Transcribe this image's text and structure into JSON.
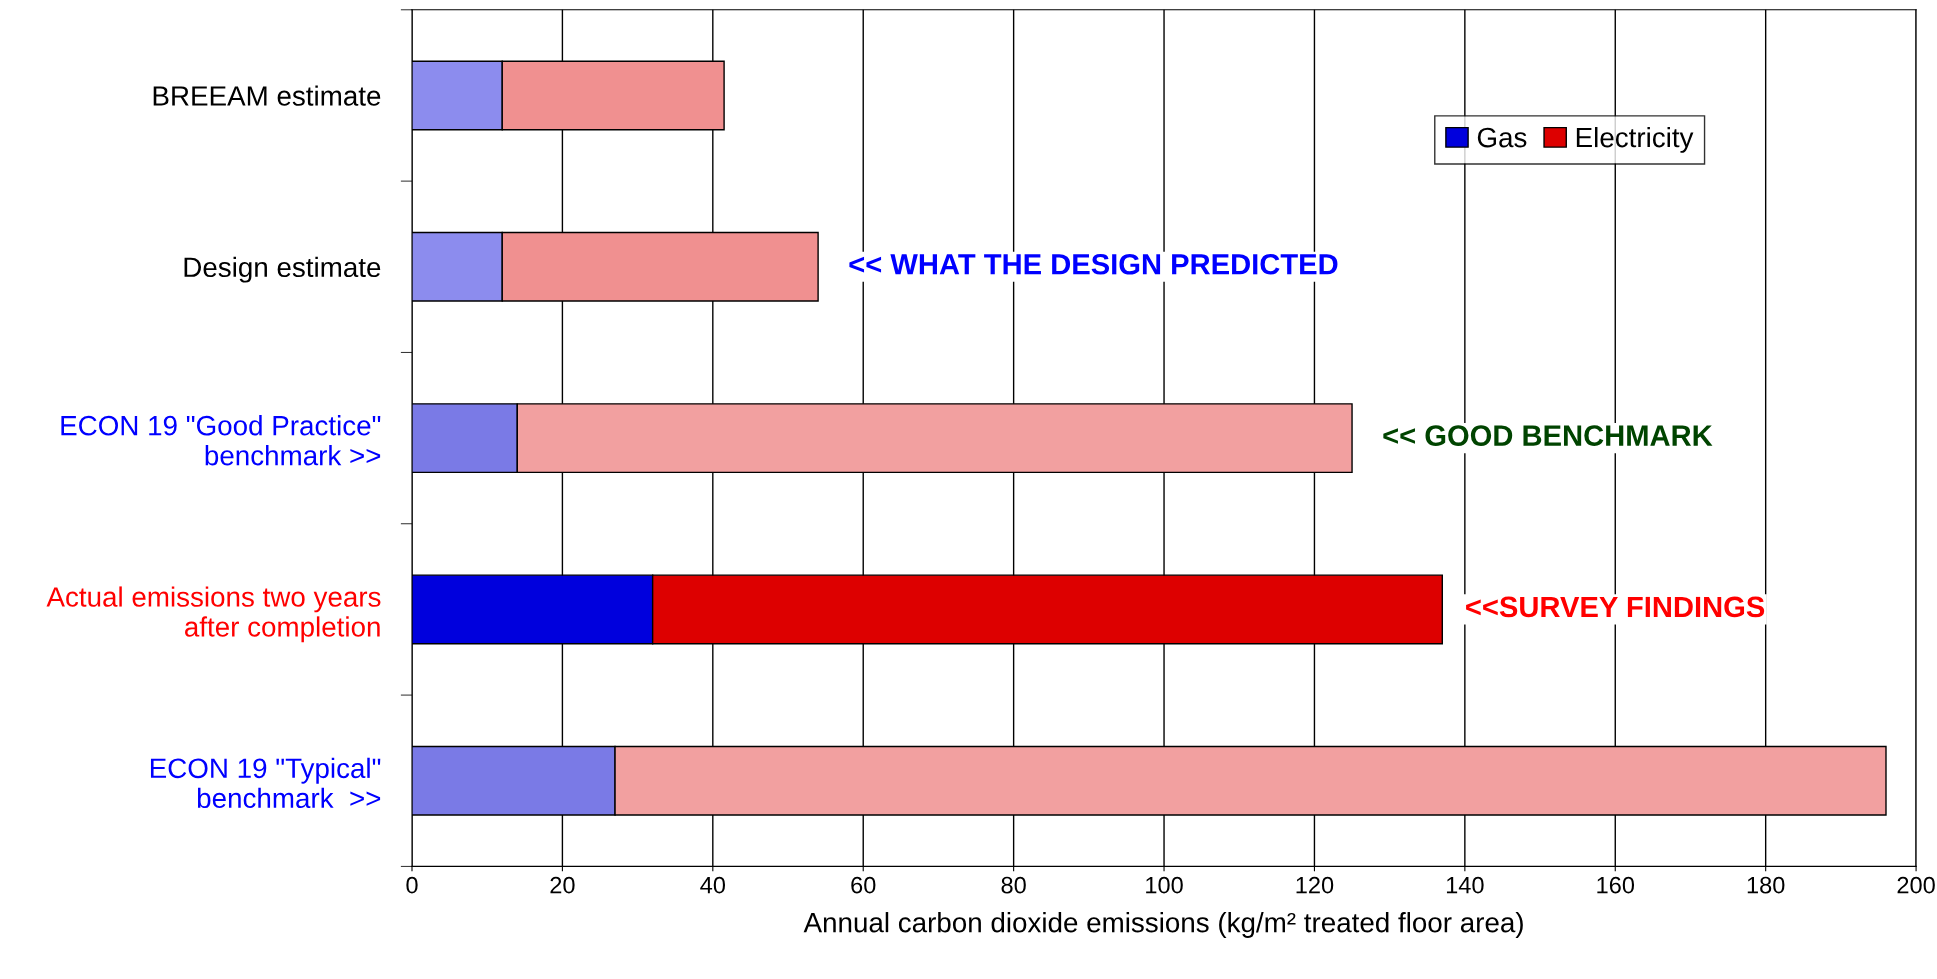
{
  "chart_data": {
    "type": "bar",
    "orientation": "horizontal",
    "stacked": true,
    "categories": [
      "BREEAM estimate",
      "Design estimate",
      "ECON 19 \"Good Practice\"\nbenchmark >>",
      "Actual emissions two years\nafter completion",
      "ECON 19 \"Typical\"\nbenchmark  >>"
    ],
    "series": [
      {
        "name": "Gas",
        "color": "#0000dd",
        "colors": [
          "#8c8cee",
          "#8c8cee",
          "#7a7ae6",
          "#0000dd",
          "#7a7ae6"
        ],
        "values": [
          12,
          12,
          14,
          32,
          27
        ]
      },
      {
        "name": "Electricity",
        "color": "#dd0000",
        "colors": [
          "#f09090",
          "#f09090",
          "#f2a0a0",
          "#dd0000",
          "#f2a0a0"
        ],
        "values": [
          29.5,
          42,
          111,
          105,
          169
        ]
      }
    ],
    "xlim": [
      0,
      200
    ],
    "xticks": [
      0,
      20,
      40,
      60,
      80,
      100,
      120,
      140,
      160,
      180,
      200
    ],
    "xlabel": "Annual carbon dioxide emissions (kg/m² treated floor area)",
    "annotations": [
      "<< WHAT THE DESIGN PREDICTED",
      "<< GOOD BENCHMARK",
      "<<SURVEY FINDINGS"
    ],
    "grid": "x",
    "legend": "top right"
  }
}
